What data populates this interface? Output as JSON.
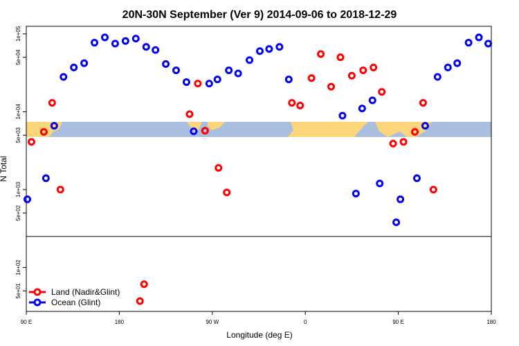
{
  "chart_data": {
    "type": "scatter",
    "title": "20N-30N September (Ver 9)   2014-09-06 to 2018-12-29",
    "x_label": "Longitude (deg E)",
    "y_label": "N Total",
    "log_y": true,
    "legend": "bottom-left",
    "xlim": [
      90,
      540
    ],
    "ylim": [
      27.3,
      125000
    ],
    "reference_line": 250,
    "xticks": [
      {
        "value": 90,
        "label": "90 E"
      },
      {
        "value": 180,
        "label": "180"
      },
      {
        "value": 270,
        "label": "90 W"
      },
      {
        "value": 360,
        "label": "0"
      },
      {
        "value": 450,
        "label": "90 E"
      },
      {
        "value": 540,
        "label": "180"
      }
    ],
    "yticks": [
      {
        "value": 50,
        "label": "5e+01"
      },
      {
        "value": 100,
        "label": "1e+02"
      },
      {
        "value": 500,
        "label": "5e+02"
      },
      {
        "value": 1000,
        "label": "1e+03"
      },
      {
        "value": 5000,
        "label": "5e+03"
      },
      {
        "value": 10000,
        "label": "1e+04"
      },
      {
        "value": 50000,
        "label": "5e+04"
      },
      {
        "value": 100000,
        "label": "1e+05"
      }
    ],
    "series": [
      {
        "name": "Land (Nadir&Glint)",
        "color": "#ff0000",
        "x": [
          95,
          107,
          115,
          123,
          248,
          256,
          263,
          276,
          284,
          347,
          355,
          366,
          375,
          385,
          394,
          405,
          416,
          426,
          434,
          445,
          455,
          466,
          474,
          484,
          200,
          204
        ],
        "values": [
          4100,
          5500,
          13000,
          1000,
          9300,
          23000,
          5700,
          1900,
          920,
          13000,
          12000,
          27000,
          55000,
          21000,
          50000,
          29000,
          34000,
          37000,
          18000,
          3900,
          4100,
          5500,
          13000,
          1000,
          37,
          61
        ]
      },
      {
        "name": "Ocean (Glint)",
        "color": "#0000ee",
        "x": [
          91,
          109,
          117,
          126,
          136,
          146,
          156,
          166,
          176,
          186,
          196,
          206,
          215,
          225,
          235,
          245,
          252,
          267,
          275,
          286,
          295,
          306,
          316,
          325,
          335,
          344,
          396,
          409,
          415,
          425,
          432,
          448,
          452,
          468,
          476,
          488,
          498,
          507,
          518,
          528,
          537
        ],
        "values": [
          750,
          1400,
          6600,
          28000,
          37000,
          42000,
          77000,
          90000,
          75000,
          81000,
          87000,
          68000,
          62000,
          41000,
          34000,
          24000,
          5600,
          23000,
          26000,
          34000,
          31000,
          46000,
          60000,
          64000,
          68000,
          26000,
          8900,
          890,
          11000,
          14000,
          1200,
          380,
          750,
          1400,
          6600,
          28000,
          37000,
          42000,
          77000,
          90000,
          75000
        ]
      }
    ]
  }
}
